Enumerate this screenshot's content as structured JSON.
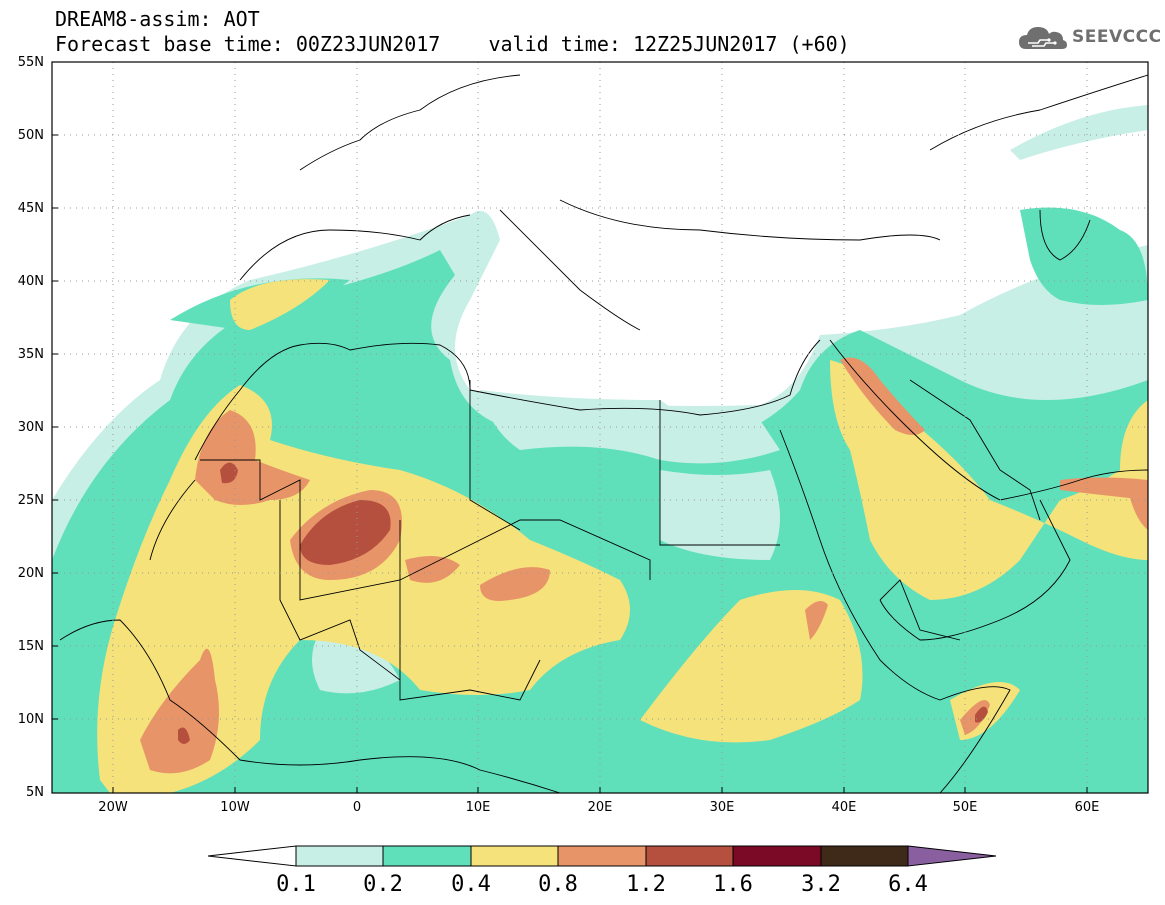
{
  "header": {
    "line1": "DREAM8-assim: AOT",
    "line2": "Forecast base time: 00Z23JUN2017    valid time: 12Z25JUN2017 (+60)"
  },
  "logo": {
    "text": "SEEVCCC",
    "icon": "cloud-icon",
    "color": "#6f6f6f"
  },
  "map": {
    "lat_labels": [
      "55N",
      "50N",
      "45N",
      "40N",
      "35N",
      "30N",
      "25N",
      "20N",
      "15N",
      "10N",
      "5N"
    ],
    "lon_labels": [
      "20W",
      "10W",
      "0",
      "10E",
      "20E",
      "30E",
      "40E",
      "50E",
      "60E"
    ],
    "lon_range": [
      -25,
      65
    ],
    "lat_range": [
      5,
      55
    ],
    "grid": "dotted"
  },
  "colorbar": {
    "colors": [
      "#c8efe6",
      "#5fe0bb",
      "#f5e27a",
      "#e89469",
      "#b5503f",
      "#7a0a25",
      "#3f2918"
    ],
    "extend_low_color": "#ffffff",
    "extend_high_color": "#8a5fa0",
    "labels": [
      "0.1",
      "0.2",
      "0.4",
      "0.8",
      "1.2",
      "1.6",
      "3.2",
      "6.4"
    ]
  }
}
